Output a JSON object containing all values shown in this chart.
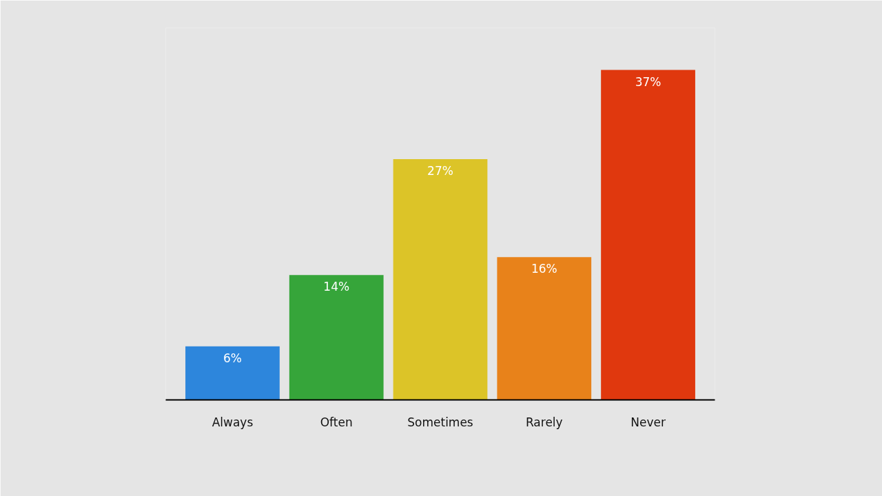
{
  "chart_data": {
    "type": "bar",
    "categories": [
      "Always",
      "Often",
      "Sometimes",
      "Rarely",
      "Never"
    ],
    "values": [
      6,
      14,
      27,
      16,
      37
    ],
    "value_labels": [
      "6%",
      "14%",
      "27%",
      "16%",
      "37%"
    ],
    "colors": [
      "#2d86dc",
      "#36a53a",
      "#dcc428",
      "#e8821a",
      "#e0380e"
    ]
  }
}
